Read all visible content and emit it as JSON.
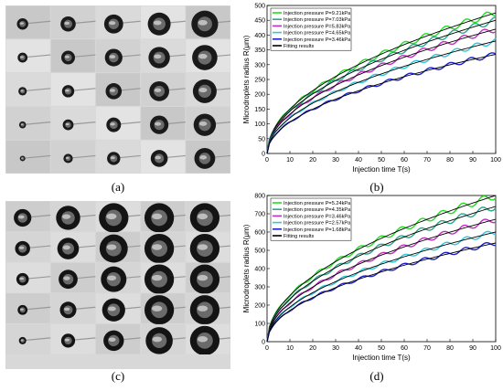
{
  "captions": {
    "a": "(a)",
    "b": "(b)",
    "c": "(c)",
    "d": "(d)"
  },
  "photo_grids": {
    "a": {
      "rows": 5,
      "cols": 5,
      "description_colors": {
        "bg": "#d6d6d6",
        "droplet": "#1a1a1a"
      }
    },
    "c": {
      "rows": 5,
      "cols": 5,
      "description_colors": {
        "bg": "#cfcfcf",
        "droplet": "#141414"
      }
    }
  },
  "colors": {
    "green": "#22dd22",
    "teal": "#2aa889",
    "magenta": "#c030c0",
    "cyan": "#30c8d8",
    "blue": "#2020cc",
    "black": "#000000"
  },
  "chart_data": [
    {
      "type": "line",
      "xlabel": "Injection time T(s)",
      "ylabel": "Microdroplets radius R(μm)",
      "xlim": [
        0,
        100
      ],
      "ylim": [
        0,
        500
      ],
      "xticks": [
        0,
        10,
        20,
        30,
        40,
        50,
        60,
        70,
        80,
        90,
        100
      ],
      "yticks": [
        0,
        50,
        100,
        150,
        200,
        250,
        300,
        350,
        400,
        450,
        500
      ],
      "legend_position": "top-left",
      "series": [
        {
          "name": "Injection pressure P=9.21kPa",
          "color_key": "green",
          "coef": 47.5,
          "exp": 0.5
        },
        {
          "name": "Injection pressure P=7.03kPa",
          "color_key": "teal",
          "coef": 45,
          "exp": 0.5
        },
        {
          "name": "Injection pressure P=5.83kPa",
          "color_key": "magenta",
          "coef": 42,
          "exp": 0.5
        },
        {
          "name": "Injection pressure P=4.65kPa",
          "color_key": "cyan",
          "coef": 38,
          "exp": 0.5
        },
        {
          "name": "Injection pressure P=3.46kPa",
          "color_key": "blue",
          "coef": 33.5,
          "exp": 0.5
        },
        {
          "name": "Fitting results",
          "color_key": "black",
          "fit": true
        }
      ],
      "sample_points": {
        "x": [
          0,
          1,
          5,
          10,
          20,
          40,
          60,
          80,
          100
        ],
        "P921": [
          0,
          48,
          106,
          150,
          212,
          300,
          368,
          425,
          475
        ],
        "P703": [
          0,
          45,
          101,
          142,
          201,
          285,
          349,
          403,
          450
        ],
        "P583": [
          0,
          42,
          94,
          133,
          188,
          266,
          325,
          376,
          420
        ],
        "P465": [
          0,
          38,
          85,
          120,
          170,
          240,
          294,
          340,
          380
        ],
        "P346": [
          0,
          34,
          75,
          106,
          150,
          212,
          259,
          300,
          335
        ]
      }
    },
    {
      "type": "line",
      "xlabel": "Injection time T(s)",
      "ylabel": "Microdroplets radius R(μm)",
      "xlim": [
        0,
        100
      ],
      "ylim": [
        0,
        800
      ],
      "xticks": [
        0,
        10,
        20,
        30,
        40,
        50,
        60,
        70,
        80,
        90,
        100
      ],
      "yticks": [
        0,
        100,
        200,
        300,
        400,
        500,
        600,
        700,
        800
      ],
      "legend_position": "top-left",
      "series": [
        {
          "name": "Injection pressure P=5.24kPa",
          "color_key": "green",
          "coef": 80,
          "exp": 0.5
        },
        {
          "name": "Injection pressure P=4.35kPa",
          "color_key": "teal",
          "coef": 74,
          "exp": 0.5
        },
        {
          "name": "Injection pressure P=3.46kPa",
          "color_key": "magenta",
          "coef": 67,
          "exp": 0.5
        },
        {
          "name": "Injection pressure P=2.57kPa",
          "color_key": "cyan",
          "coef": 60,
          "exp": 0.5
        },
        {
          "name": "Injection pressure P=1.68kPa",
          "color_key": "blue",
          "coef": 54,
          "exp": 0.5
        },
        {
          "name": "Fitting results",
          "color_key": "black",
          "fit": true
        }
      ],
      "sample_points": {
        "x": [
          0,
          1,
          5,
          10,
          20,
          40,
          60,
          80,
          100
        ],
        "P524": [
          0,
          80,
          179,
          253,
          358,
          506,
          620,
          716,
          800
        ],
        "P435": [
          0,
          74,
          165,
          234,
          331,
          468,
          573,
          662,
          740
        ],
        "P346": [
          0,
          67,
          150,
          212,
          300,
          424,
          519,
          599,
          670
        ],
        "P257": [
          0,
          60,
          134,
          190,
          268,
          380,
          465,
          537,
          600
        ],
        "P168": [
          0,
          54,
          121,
          171,
          241,
          342,
          418,
          483,
          540
        ]
      }
    }
  ]
}
